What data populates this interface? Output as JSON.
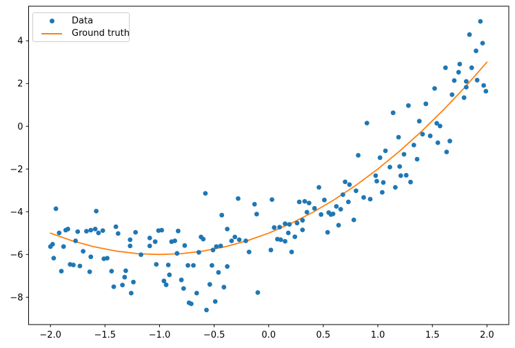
{
  "chart_data": {
    "type": "scatter",
    "title": "",
    "xlabel": "",
    "ylabel": "",
    "xlim": [
      -2.2,
      2.2
    ],
    "ylim": [
      -9.28,
      5.62
    ],
    "grid": false,
    "background": "#ffffff",
    "spine_color": "#000000",
    "legend_position": "upper left",
    "xticks": {
      "values": [
        -2.0,
        -1.5,
        -1.0,
        -0.5,
        0.0,
        0.5,
        1.0,
        1.5,
        2.0
      ],
      "labels": [
        "−2.0",
        "−1.5",
        "−1.0",
        "−0.5",
        "0.0",
        "0.5",
        "1.0",
        "1.5",
        "2.0"
      ]
    },
    "yticks": {
      "values": [
        4,
        2,
        0,
        -2,
        -4,
        -6,
        -8
      ],
      "labels": [
        "4",
        "2",
        "0",
        "−2",
        "−4",
        "−6",
        "−8"
      ]
    },
    "series": [
      {
        "name": "Data",
        "type": "scatter",
        "color": "#1f77b4",
        "marker": "circle",
        "points": [
          [
            -1.95,
            -3.86
          ],
          [
            -1.58,
            -3.97
          ],
          [
            -1.92,
            -4.99
          ],
          [
            -1.86,
            -4.86
          ],
          [
            -1.84,
            -4.81
          ],
          [
            -1.75,
            -4.93
          ],
          [
            -1.67,
            -4.91
          ],
          [
            -1.63,
            -4.86
          ],
          [
            -1.59,
            -4.81
          ],
          [
            -1.56,
            -4.99
          ],
          [
            -1.52,
            -4.88
          ],
          [
            -1.4,
            -4.7
          ],
          [
            -1.38,
            -5.02
          ],
          [
            -2.0,
            -5.63
          ],
          [
            -1.98,
            -5.52
          ],
          [
            -1.88,
            -5.63
          ],
          [
            -1.97,
            -6.17
          ],
          [
            -1.77,
            -5.36
          ],
          [
            -1.7,
            -5.85
          ],
          [
            -1.63,
            -6.11
          ],
          [
            -1.82,
            -6.46
          ],
          [
            -1.79,
            -6.49
          ],
          [
            -1.73,
            -6.54
          ],
          [
            -1.9,
            -6.78
          ],
          [
            -1.64,
            -6.81
          ],
          [
            -1.51,
            -6.2
          ],
          [
            -1.48,
            -6.17
          ],
          [
            -1.44,
            -6.78
          ],
          [
            -1.31,
            -6.76
          ],
          [
            -1.42,
            -7.51
          ],
          [
            -1.34,
            -7.43
          ],
          [
            -1.32,
            -7.06
          ],
          [
            -1.24,
            -7.29
          ],
          [
            -1.26,
            -7.81
          ],
          [
            -1.22,
            -4.96
          ],
          [
            -1.27,
            -5.31
          ],
          [
            -1.27,
            -5.6
          ],
          [
            -1.17,
            -6.01
          ],
          [
            -0.58,
            -3.14
          ],
          [
            -0.28,
            -3.38
          ],
          [
            -0.13,
            -3.65
          ],
          [
            -0.11,
            -4.11
          ],
          [
            -0.43,
            -4.16
          ],
          [
            -0.38,
            -4.81
          ],
          [
            -1.01,
            -4.88
          ],
          [
            -0.98,
            -4.86
          ],
          [
            -0.83,
            -4.9
          ],
          [
            -1.09,
            -5.23
          ],
          [
            -1.04,
            -5.4
          ],
          [
            -0.89,
            -5.4
          ],
          [
            -0.86,
            -5.36
          ],
          [
            -0.77,
            -5.58
          ],
          [
            -1.09,
            -5.6
          ],
          [
            -0.62,
            -5.18
          ],
          [
            -0.6,
            -5.28
          ],
          [
            -0.84,
            -5.95
          ],
          [
            -0.64,
            -5.9
          ],
          [
            -0.51,
            -5.79
          ],
          [
            -0.48,
            -5.63
          ],
          [
            -0.44,
            -5.6
          ],
          [
            -0.34,
            -5.36
          ],
          [
            -0.31,
            -5.18
          ],
          [
            -0.27,
            -5.31
          ],
          [
            -0.21,
            -5.36
          ],
          [
            -0.18,
            -5.88
          ],
          [
            -1.03,
            -6.46
          ],
          [
            -0.92,
            -6.49
          ],
          [
            -0.74,
            -6.51
          ],
          [
            -0.69,
            -6.51
          ],
          [
            -0.52,
            -6.51
          ],
          [
            -0.38,
            -6.56
          ],
          [
            -0.91,
            -6.95
          ],
          [
            -0.96,
            -7.24
          ],
          [
            -0.94,
            -7.42
          ],
          [
            -0.8,
            -7.19
          ],
          [
            -0.78,
            -7.59
          ],
          [
            -0.54,
            -7.4
          ],
          [
            -0.46,
            -6.84
          ],
          [
            -0.41,
            -7.53
          ],
          [
            -0.66,
            -7.81
          ],
          [
            -0.73,
            -8.26
          ],
          [
            -0.71,
            -8.31
          ],
          [
            -0.57,
            -8.6
          ],
          [
            -0.49,
            -8.2
          ],
          [
            -0.1,
            -7.78
          ],
          [
            0.03,
            -3.43
          ],
          [
            0.28,
            -3.54
          ],
          [
            0.33,
            -3.51
          ],
          [
            0.37,
            -3.59
          ],
          [
            0.46,
            -2.86
          ],
          [
            0.51,
            -3.45
          ],
          [
            0.42,
            -3.84
          ],
          [
            0.35,
            -4.02
          ],
          [
            0.48,
            -4.13
          ],
          [
            0.55,
            -4.04
          ],
          [
            0.57,
            -4.13
          ],
          [
            0.59,
            -4.1
          ],
          [
            0.62,
            -3.75
          ],
          [
            0.66,
            -3.88
          ],
          [
            0.68,
            -3.2
          ],
          [
            0.7,
            -2.6
          ],
          [
            0.74,
            -2.73
          ],
          [
            0.8,
            -3.02
          ],
          [
            0.73,
            -3.54
          ],
          [
            0.78,
            -4.38
          ],
          [
            0.64,
            -4.63
          ],
          [
            0.54,
            -4.96
          ],
          [
            0.31,
            -4.85
          ],
          [
            0.26,
            -4.53
          ],
          [
            0.31,
            -4.4
          ],
          [
            0.15,
            -4.56
          ],
          [
            0.19,
            -4.59
          ],
          [
            0.05,
            -4.74
          ],
          [
            0.1,
            -4.72
          ],
          [
            0.18,
            -4.99
          ],
          [
            0.08,
            -5.28
          ],
          [
            0.11,
            -5.31
          ],
          [
            0.15,
            -5.38
          ],
          [
            0.24,
            -5.17
          ],
          [
            0.21,
            -5.88
          ],
          [
            0.02,
            -5.79
          ],
          [
            0.87,
            -3.33
          ],
          [
            0.93,
            -3.41
          ],
          [
            0.98,
            -2.31
          ],
          [
            0.99,
            -2.57
          ],
          [
            1.05,
            -2.63
          ],
          [
            1.04,
            -3.09
          ],
          [
            0.9,
            0.15
          ],
          [
            0.82,
            -1.36
          ],
          [
            1.07,
            -1.15
          ],
          [
            1.02,
            -1.47
          ],
          [
            1.2,
            -1.88
          ],
          [
            1.21,
            -2.31
          ],
          [
            1.26,
            -2.29
          ],
          [
            1.3,
            -2.61
          ],
          [
            1.16,
            -2.86
          ],
          [
            1.11,
            -1.91
          ],
          [
            1.94,
            4.91
          ],
          [
            1.84,
            4.29
          ],
          [
            1.96,
            3.89
          ],
          [
            1.9,
            3.53
          ],
          [
            1.62,
            2.74
          ],
          [
            1.75,
            2.91
          ],
          [
            1.86,
            2.74
          ],
          [
            1.74,
            2.53
          ],
          [
            1.7,
            2.14
          ],
          [
            1.81,
            2.1
          ],
          [
            1.91,
            2.16
          ],
          [
            1.97,
            1.91
          ],
          [
            1.99,
            1.64
          ],
          [
            1.81,
            1.83
          ],
          [
            1.68,
            1.48
          ],
          [
            1.52,
            1.77
          ],
          [
            1.79,
            1.34
          ],
          [
            1.28,
            0.97
          ],
          [
            1.44,
            1.05
          ],
          [
            1.14,
            0.63
          ],
          [
            1.38,
            0.24
          ],
          [
            1.41,
            -0.37
          ],
          [
            1.33,
            -0.88
          ],
          [
            1.48,
            -0.45
          ],
          [
            1.54,
            0.14
          ],
          [
            1.57,
            0.01
          ],
          [
            1.24,
            -1.31
          ],
          [
            1.36,
            -1.54
          ],
          [
            1.19,
            -0.51
          ],
          [
            1.55,
            -0.77
          ],
          [
            1.66,
            -0.69
          ],
          [
            1.63,
            -1.2
          ]
        ]
      },
      {
        "name": "Ground truth",
        "type": "line",
        "color": "#ff7f0e",
        "formula": "y = x^2 + 2x - 5",
        "points": [
          [
            -2.0,
            -5.0
          ],
          [
            -1.8,
            -5.36
          ],
          [
            -1.6,
            -5.64
          ],
          [
            -1.4,
            -5.84
          ],
          [
            -1.2,
            -5.96
          ],
          [
            -1.0,
            -6.0
          ],
          [
            -0.8,
            -5.96
          ],
          [
            -0.6,
            -5.84
          ],
          [
            -0.4,
            -5.64
          ],
          [
            -0.2,
            -5.36
          ],
          [
            0.0,
            -5.0
          ],
          [
            0.2,
            -4.56
          ],
          [
            0.4,
            -4.04
          ],
          [
            0.6,
            -3.44
          ],
          [
            0.8,
            -2.76
          ],
          [
            1.0,
            -2.0
          ],
          [
            1.2,
            -1.16
          ],
          [
            1.4,
            -0.24
          ],
          [
            1.6,
            0.76
          ],
          [
            1.8,
            1.84
          ],
          [
            2.0,
            3.0
          ]
        ]
      }
    ]
  }
}
